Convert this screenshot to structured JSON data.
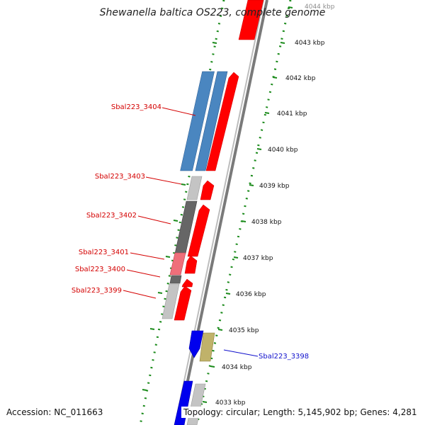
{
  "title": "Shewanella baltica OS223, complete genome",
  "accession_text": "Accession: NC_011663",
  "summary_text": "Topology: circular; Length: 5,145,902 bp; Genes: 4,281",
  "scale_ticks": [
    {
      "label": "4044 kbp",
      "faded": true
    },
    {
      "label": "4043 kbp"
    },
    {
      "label": "4042 kbp"
    },
    {
      "label": "4041 kbp"
    },
    {
      "label": "4040 kbp"
    },
    {
      "label": "4039 kbp"
    },
    {
      "label": "4038 kbp"
    },
    {
      "label": "4037 kbp"
    },
    {
      "label": "4036 kbp"
    },
    {
      "label": "4035 kbp"
    },
    {
      "label": "4034 kbp"
    },
    {
      "label": "4033 kbp"
    }
  ],
  "gene_labels": [
    {
      "label": "Sbal223_3404",
      "color": "#d40000"
    },
    {
      "label": "Sbal223_3403",
      "color": "#d40000"
    },
    {
      "label": "Sbal223_3402",
      "color": "#d40000"
    },
    {
      "label": "Sbal223_3401",
      "color": "#d40000"
    },
    {
      "label": "Sbal223_3400",
      "color": "#d40000"
    },
    {
      "label": "Sbal223_3399",
      "color": "#d40000"
    },
    {
      "label": "Sbal223_3398",
      "color": "#1010cc"
    }
  ],
  "colors": {
    "forward_gene": "#ff0000",
    "reverse_gene_blue": "#0000ee",
    "cog_blue": "#4a86c0",
    "light_gray": "#c0c0c0",
    "dark_gray": "#666666",
    "pink": "#ef6f7a",
    "olive": "#c0b26a",
    "dotted_track": "#1a8a1a",
    "backbone": "#808080"
  }
}
